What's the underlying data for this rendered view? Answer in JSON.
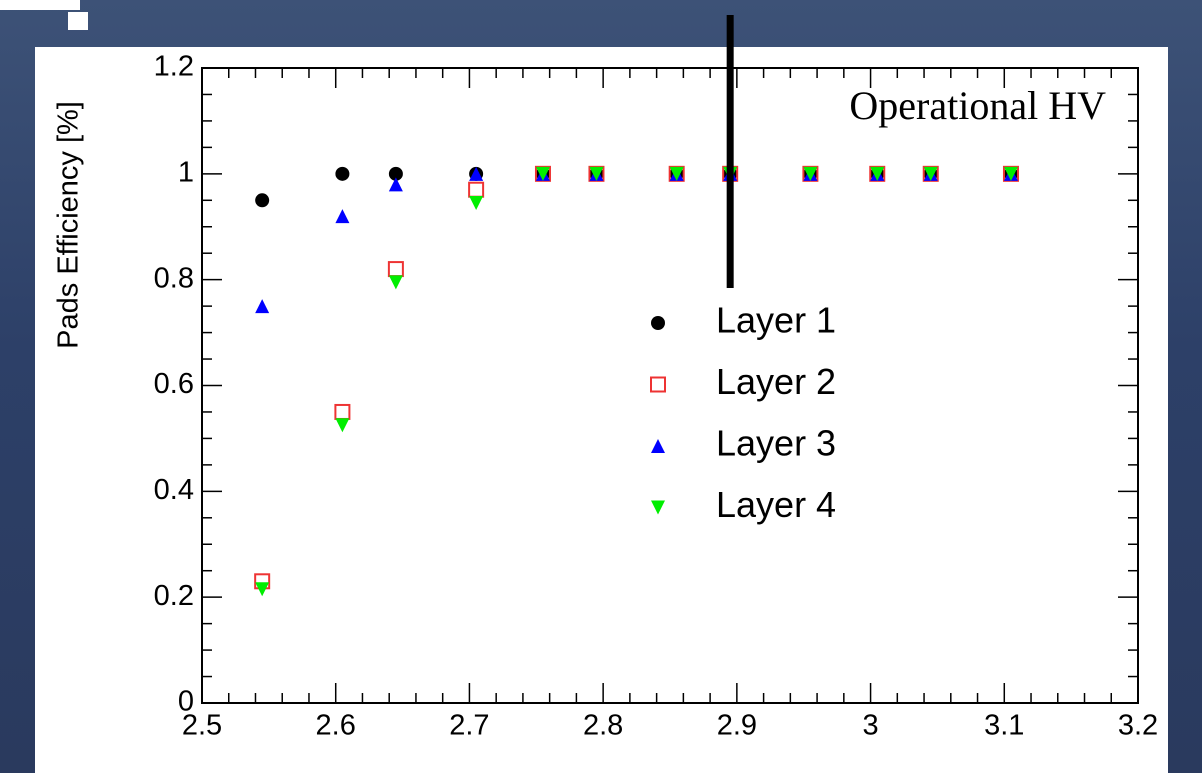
{
  "chart_data": {
    "type": "scatter",
    "ylabel": "Pads Efficiency [%]",
    "x": [
      2.545,
      2.605,
      2.645,
      2.705,
      2.755,
      2.795,
      2.855,
      2.895,
      2.955,
      3.005,
      3.045,
      3.105
    ],
    "series": [
      {
        "name": "Layer 1",
        "color": "#000000",
        "marker": "circle",
        "values": [
          0.95,
          1,
          1,
          1,
          1,
          1,
          1,
          1,
          1,
          1,
          1,
          1
        ]
      },
      {
        "name": "Layer 2",
        "color": "#ee3333",
        "marker": "open-square",
        "values": [
          0.23,
          0.55,
          0.82,
          0.97,
          1,
          1,
          1,
          1,
          1,
          1,
          1,
          1
        ]
      },
      {
        "name": "Layer 3",
        "color": "#0000ff",
        "marker": "triangle-up",
        "values": [
          0.75,
          0.92,
          0.98,
          1,
          1,
          1,
          1,
          1,
          1,
          1,
          1,
          1
        ]
      },
      {
        "name": "Layer 4",
        "color": "#00ee00",
        "marker": "triangle-down",
        "values": [
          0.215,
          0.525,
          0.795,
          0.945,
          1,
          1,
          1,
          1,
          1,
          1,
          1,
          1
        ]
      }
    ],
    "xlim": [
      2.5,
      3.2
    ],
    "xticks": [
      2.5,
      2.6,
      2.7,
      2.8,
      2.9,
      3,
      3.1,
      3.2
    ],
    "ylim": [
      0,
      1.2
    ],
    "yticks": [
      0,
      0.2,
      0.4,
      0.6,
      0.8,
      1,
      1.2
    ],
    "annotations": [
      {
        "text": "Operational HV",
        "x": 2.895
      }
    ]
  }
}
